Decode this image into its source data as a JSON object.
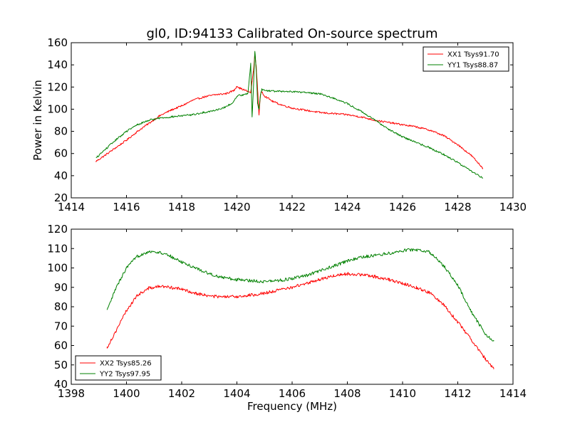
{
  "title": "gl0, ID:94133 Calibrated On-source spectrum",
  "xlabel": "Frequency (MHz)",
  "ylabel": "Power in Kelvin",
  "colors": {
    "xx": "#ff0000",
    "yy": "#008000",
    "axes": "#000000",
    "background": "#ffffff"
  },
  "chart_data": [
    {
      "type": "line",
      "ylabel": "Power in Kelvin",
      "xlim": [
        1414,
        1430
      ],
      "ylim": [
        20,
        160
      ],
      "xticks": [
        1414,
        1416,
        1418,
        1420,
        1422,
        1424,
        1426,
        1428,
        1430
      ],
      "yticks": [
        20,
        40,
        60,
        80,
        100,
        120,
        140,
        160
      ],
      "grid": false,
      "legend_position": "upper right",
      "series": [
        {
          "name": "XX1 Tsys91.70",
          "color": "#ff0000",
          "x": [
            1414.9,
            1415.2,
            1415.6,
            1416.0,
            1416.4,
            1416.8,
            1417.2,
            1417.6,
            1418.0,
            1418.4,
            1418.8,
            1419.2,
            1419.6,
            1419.9,
            1420.0,
            1420.1,
            1420.3,
            1420.5,
            1420.55,
            1420.6,
            1420.65,
            1420.7,
            1420.75,
            1420.8,
            1420.85,
            1420.9,
            1421.0,
            1421.3,
            1421.6,
            1422.0,
            1422.5,
            1423.0,
            1423.5,
            1424.0,
            1424.5,
            1425.0,
            1425.5,
            1426.0,
            1426.5,
            1427.0,
            1427.5,
            1428.0,
            1428.5,
            1428.9
          ],
          "y": [
            53,
            58,
            65,
            72,
            80,
            87,
            94,
            99,
            103,
            108,
            111,
            113,
            114,
            117,
            121,
            119,
            117,
            115,
            125,
            135,
            150,
            138,
            118,
            95,
            112,
            116,
            112,
            107,
            104,
            101,
            99,
            97,
            96,
            95,
            93,
            90,
            88,
            86,
            84,
            81,
            76,
            68,
            58,
            47
          ]
        },
        {
          "name": "YY1 Tsys88.87",
          "color": "#008000",
          "x": [
            1414.9,
            1415.2,
            1415.6,
            1416.0,
            1416.4,
            1416.8,
            1417.2,
            1417.6,
            1418.0,
            1418.4,
            1418.8,
            1419.2,
            1419.6,
            1419.9,
            1420.0,
            1420.2,
            1420.4,
            1420.5,
            1420.55,
            1420.6,
            1420.65,
            1420.7,
            1420.75,
            1420.8,
            1420.85,
            1420.9,
            1421.0,
            1421.5,
            1422.0,
            1422.5,
            1423.0,
            1423.5,
            1424.0,
            1424.5,
            1425.0,
            1425.5,
            1426.0,
            1426.5,
            1427.0,
            1427.5,
            1428.0,
            1428.5,
            1428.9
          ],
          "y": [
            56,
            63,
            72,
            80,
            86,
            90,
            92,
            93,
            94,
            95,
            97,
            99,
            102,
            107,
            112,
            113,
            114,
            141,
            93,
            120,
            153,
            135,
            105,
            100,
            112,
            118,
            117,
            116,
            116,
            115,
            114,
            110,
            105,
            98,
            90,
            82,
            75,
            70,
            65,
            59,
            52,
            44,
            38
          ]
        }
      ]
    },
    {
      "type": "line",
      "xlabel": "Frequency (MHz)",
      "xlim": [
        1398,
        1414
      ],
      "ylim": [
        40,
        120
      ],
      "xticks": [
        1398,
        1400,
        1402,
        1404,
        1406,
        1408,
        1410,
        1412,
        1414
      ],
      "yticks": [
        40,
        50,
        60,
        70,
        80,
        90,
        100,
        110,
        120
      ],
      "grid": false,
      "legend_position": "lower left",
      "series": [
        {
          "name": "XX2 Tsys85.26",
          "color": "#ff0000",
          "x": [
            1399.3,
            1399.6,
            1400.0,
            1400.4,
            1400.8,
            1401.2,
            1401.6,
            1402.0,
            1402.5,
            1403.0,
            1403.5,
            1404.0,
            1404.5,
            1405.0,
            1405.5,
            1406.0,
            1406.5,
            1407.0,
            1407.5,
            1408.0,
            1408.5,
            1409.0,
            1409.5,
            1410.0,
            1410.5,
            1411.0,
            1411.5,
            1412.0,
            1412.5,
            1413.0,
            1413.3
          ],
          "y": [
            59,
            67,
            78,
            86,
            89.5,
            90.5,
            90,
            89,
            87,
            85.5,
            85,
            85.2,
            86,
            87,
            88.5,
            90,
            92,
            94,
            96,
            97,
            96.5,
            95.5,
            94,
            92,
            90,
            87,
            81,
            72,
            63,
            53,
            48
          ]
        },
        {
          "name": "YY2 Tsys97.95",
          "color": "#008000",
          "x": [
            1399.3,
            1399.6,
            1400.0,
            1400.4,
            1400.8,
            1401.2,
            1401.6,
            1402.0,
            1402.5,
            1403.0,
            1403.5,
            1404.0,
            1404.5,
            1405.0,
            1405.5,
            1406.0,
            1406.5,
            1407.0,
            1407.5,
            1408.0,
            1408.5,
            1409.0,
            1409.5,
            1410.0,
            1410.5,
            1411.0,
            1411.5,
            1412.0,
            1412.5,
            1413.0,
            1413.3
          ],
          "y": [
            78,
            89,
            100,
            106,
            108.5,
            108,
            106,
            103,
            100,
            97,
            95,
            94,
            93.5,
            93,
            93.5,
            94.5,
            96,
            98.5,
            101,
            103.5,
            105.5,
            106.5,
            107.5,
            109,
            109.5,
            108,
            101,
            91,
            77,
            66,
            62
          ]
        }
      ]
    }
  ]
}
